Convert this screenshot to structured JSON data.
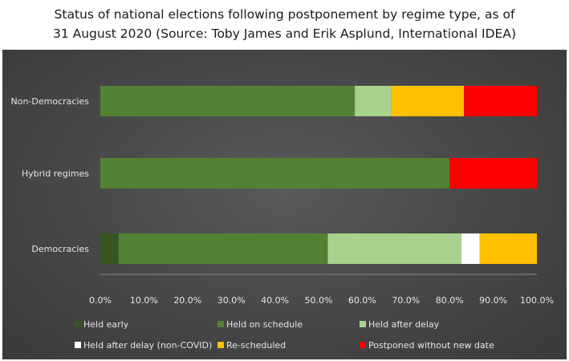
{
  "title_line1": "Status of national elections following postponement by regime type, as of",
  "title_line2": "31 August 2020 (Source: Toby James and Erik Asplund, International IDEA)",
  "chart_data": {
    "type": "bar",
    "orientation": "horizontal",
    "stacked": "percent",
    "categories": [
      "Non-Democracies",
      "Hybrid regimes",
      "Democracies"
    ],
    "series": [
      {
        "name": "Held early",
        "color": "#375623",
        "values": [
          0,
          0,
          4.2
        ]
      },
      {
        "name": "Held on schedule",
        "color": "#548235",
        "values": [
          58.3,
          80.0,
          47.9
        ]
      },
      {
        "name": "Held after delay",
        "color": "#a9d18e",
        "values": [
          8.3,
          0,
          30.6
        ]
      },
      {
        "name": "Held after delay (non-COVID)",
        "color": "#ffffff",
        "values": [
          0,
          0,
          4.2
        ]
      },
      {
        "name": "Re-scheduled",
        "color": "#ffc000",
        "values": [
          16.7,
          0,
          13.1
        ]
      },
      {
        "name": "Postponed without new date",
        "color": "#ff0000",
        "values": [
          16.7,
          20.0,
          0
        ]
      }
    ],
    "xlim": [
      0,
      100
    ],
    "xticks": [
      "0.0%",
      "10.0%",
      "20.0%",
      "30.0%",
      "40.0%",
      "50.0%",
      "60.0%",
      "70.0%",
      "80.0%",
      "90.0%",
      "100.0%"
    ],
    "grid": false,
    "legend_position": "bottom"
  }
}
